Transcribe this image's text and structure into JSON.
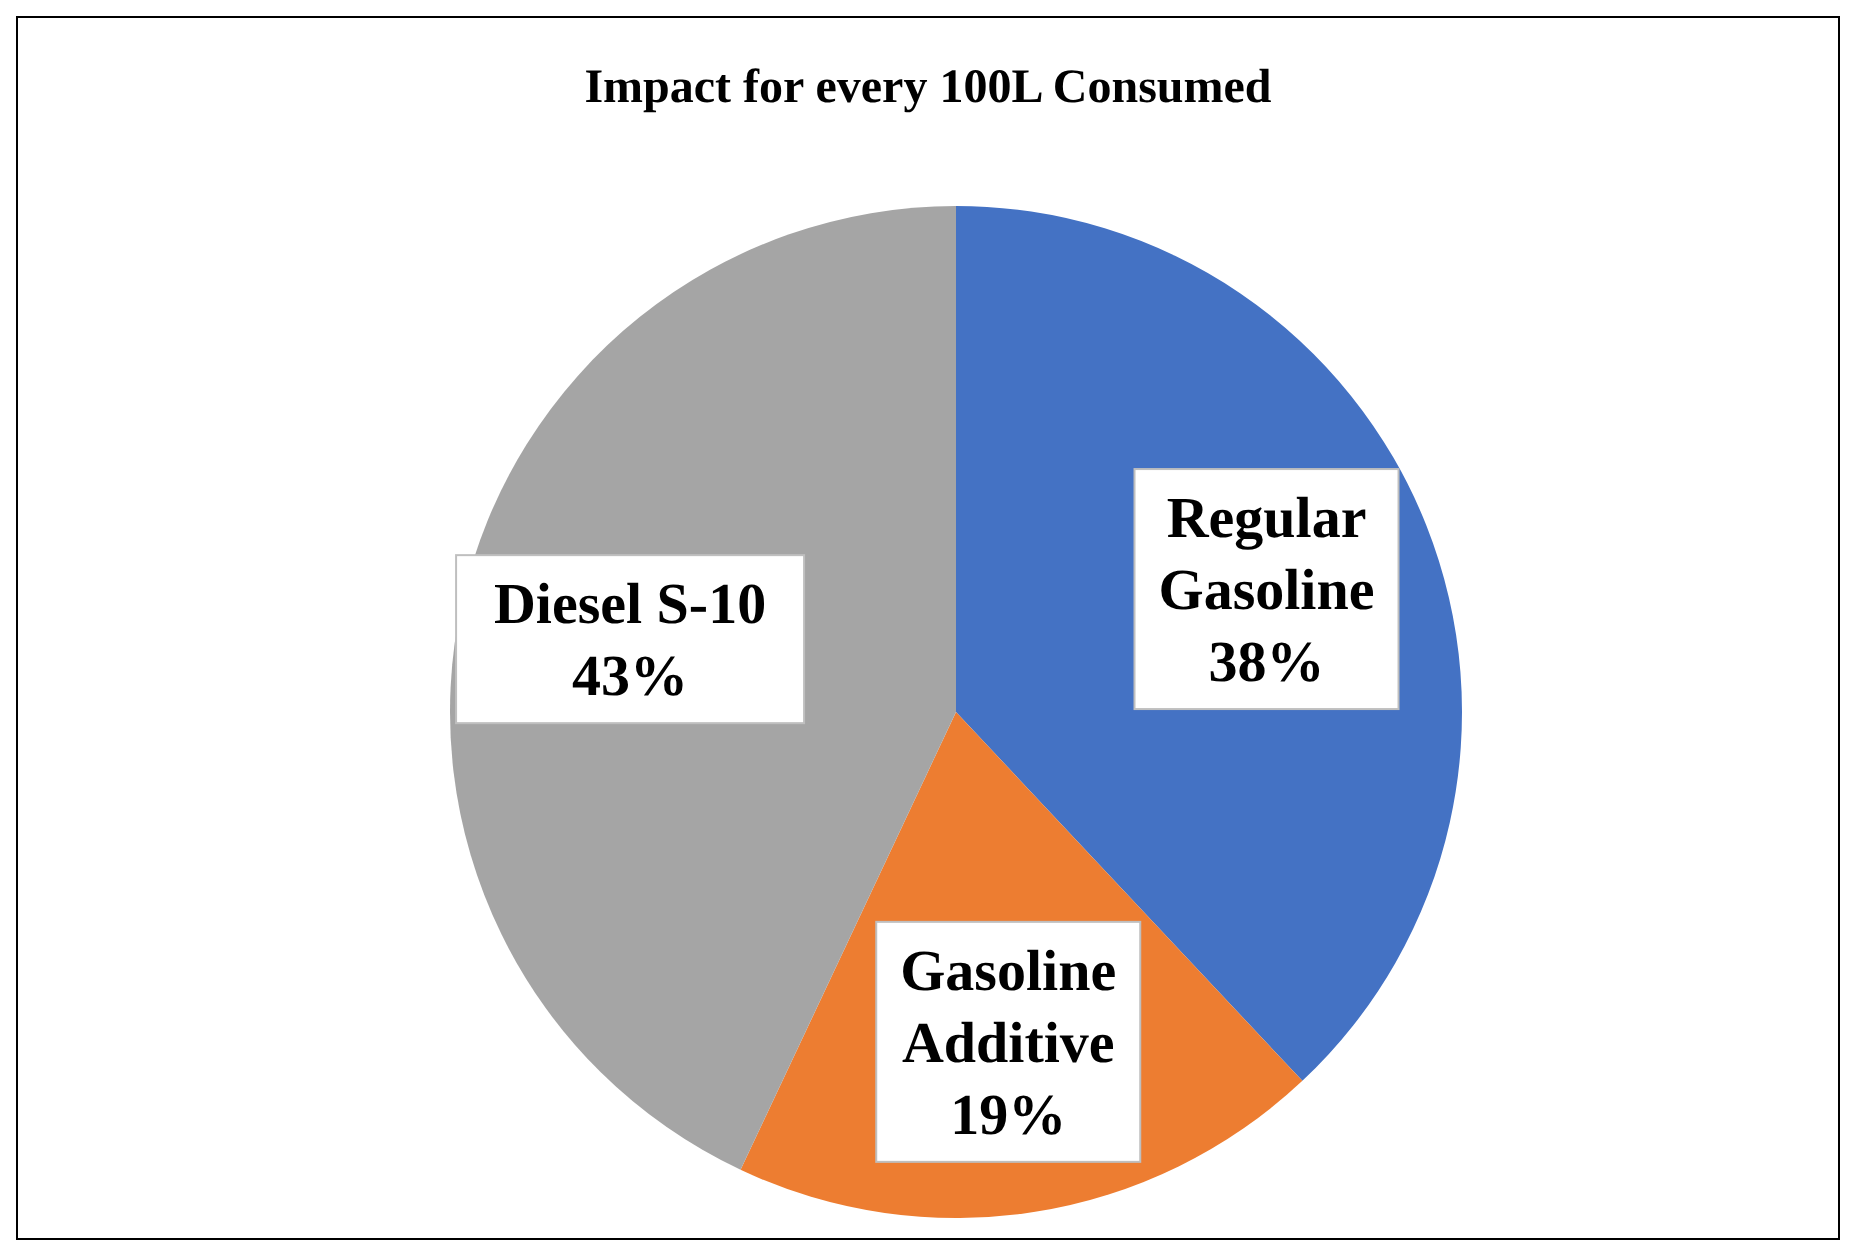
{
  "chart_data": {
    "type": "pie",
    "title": "Impact for every 100L Consumed",
    "categories": [
      "Regular Gasoline",
      "Gasoline Additive",
      "Diesel S-10"
    ],
    "values": [
      38,
      19,
      43
    ],
    "colors": [
      "#4472c4",
      "#ed7d31",
      "#a5a5a5"
    ],
    "value_labels": [
      "38%",
      "19%",
      "43%"
    ],
    "legend": false
  }
}
